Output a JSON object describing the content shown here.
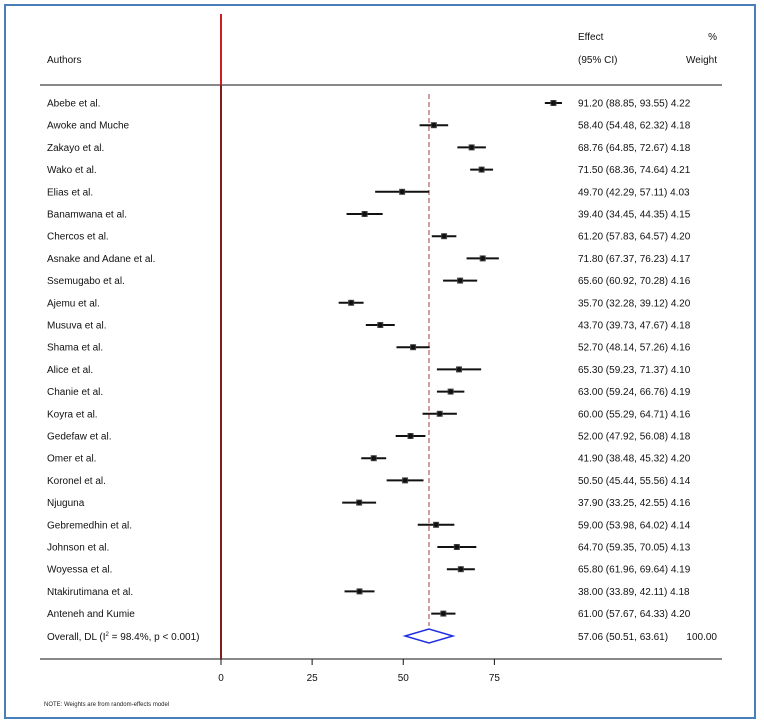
{
  "chart_data": {
    "type": "forest",
    "header": {
      "authors": "Authors",
      "effect": "Effect",
      "ci": "(95% CI)",
      "percent": "%",
      "weight": "Weight"
    },
    "xaxis": {
      "ticks": [
        0,
        25,
        50,
        75
      ],
      "xlim": [
        0,
        75
      ]
    },
    "null_line": 0,
    "pooled_line": 57.06,
    "studies": [
      {
        "label": "Abebe et al.",
        "est": 91.2,
        "lo": 88.85,
        "hi": 93.55,
        "text": "91.20 (88.85, 93.55) 4.22"
      },
      {
        "label": "Awoke and Muche",
        "est": 58.4,
        "lo": 54.48,
        "hi": 62.32,
        "text": "58.40 (54.48, 62.32) 4.18"
      },
      {
        "label": "Zakayo et al.",
        "est": 68.76,
        "lo": 64.85,
        "hi": 72.67,
        "text": "68.76 (64.85, 72.67) 4.18"
      },
      {
        "label": "Wako et al.",
        "est": 71.5,
        "lo": 68.36,
        "hi": 74.64,
        "text": "71.50 (68.36, 74.64) 4.21"
      },
      {
        "label": "Elias et al.",
        "est": 49.7,
        "lo": 42.29,
        "hi": 57.11,
        "text": "49.70 (42.29, 57.11) 4.03"
      },
      {
        "label": "Banamwana et al.",
        "est": 39.4,
        "lo": 34.45,
        "hi": 44.35,
        "text": "39.40 (34.45, 44.35) 4.15"
      },
      {
        "label": "Chercos et al.",
        "est": 61.2,
        "lo": 57.83,
        "hi": 64.57,
        "text": "61.20 (57.83, 64.57) 4.20"
      },
      {
        "label": "Asnake and Adane et al.",
        "est": 71.8,
        "lo": 67.37,
        "hi": 76.23,
        "text": "71.80 (67.37, 76.23) 4.17"
      },
      {
        "label": "Ssemugabo et al.",
        "est": 65.6,
        "lo": 60.92,
        "hi": 70.28,
        "text": "65.60 (60.92, 70.28) 4.16"
      },
      {
        "label": "Ajemu et al.",
        "est": 35.7,
        "lo": 32.28,
        "hi": 39.12,
        "text": "35.70 (32.28, 39.12) 4.20"
      },
      {
        "label": "Musuva et al.",
        "est": 43.7,
        "lo": 39.73,
        "hi": 47.67,
        "text": "43.70 (39.73, 47.67) 4.18"
      },
      {
        "label": "Shama et al.",
        "est": 52.7,
        "lo": 48.14,
        "hi": 57.26,
        "text": "52.70 (48.14, 57.26) 4.16"
      },
      {
        "label": "Alice  et al.",
        "est": 65.3,
        "lo": 59.23,
        "hi": 71.37,
        "text": "65.30 (59.23, 71.37) 4.10"
      },
      {
        "label": "Chanie et al.",
        "est": 63.0,
        "lo": 59.24,
        "hi": 66.76,
        "text": "63.00 (59.24, 66.76) 4.19"
      },
      {
        "label": "Koyra et al.",
        "est": 60.0,
        "lo": 55.29,
        "hi": 64.71,
        "text": "60.00 (55.29, 64.71) 4.16"
      },
      {
        "label": "Gedefaw et al.",
        "est": 52.0,
        "lo": 47.92,
        "hi": 56.08,
        "text": "52.00 (47.92, 56.08) 4.18"
      },
      {
        "label": "Omer et al.",
        "est": 41.9,
        "lo": 38.48,
        "hi": 45.32,
        "text": "41.90 (38.48, 45.32) 4.20"
      },
      {
        "label": "Koronel et al.",
        "est": 50.5,
        "lo": 45.44,
        "hi": 55.56,
        "text": "50.50 (45.44, 55.56) 4.14"
      },
      {
        "label": "Njuguna",
        "est": 37.9,
        "lo": 33.25,
        "hi": 42.55,
        "text": "37.90 (33.25, 42.55) 4.16"
      },
      {
        "label": "Gebremedhin et al.",
        "est": 59.0,
        "lo": 53.98,
        "hi": 64.02,
        "text": "59.00 (53.98, 64.02) 4.14"
      },
      {
        "label": "Johnson et al.",
        "est": 64.7,
        "lo": 59.35,
        "hi": 70.05,
        "text": "64.70 (59.35, 70.05) 4.13"
      },
      {
        "label": "Woyessa et al.",
        "est": 65.8,
        "lo": 61.96,
        "hi": 69.64,
        "text": "65.80 (61.96, 69.64) 4.19"
      },
      {
        "label": "Ntakirutimana et al.",
        "est": 38.0,
        "lo": 33.89,
        "hi": 42.11,
        "text": "38.00 (33.89, 42.11) 4.18"
      },
      {
        "label": "Anteneh and Kumie",
        "est": 61.0,
        "lo": 57.67,
        "hi": 64.33,
        "text": "61.00 (57.67, 64.33) 4.20"
      }
    ],
    "overall": {
      "label_main": "Overall, DL (I",
      "label_sup": "2",
      "label_rest": " = 98.4%, p < 0.001)",
      "est": 57.06,
      "lo": 50.51,
      "hi": 63.61,
      "text": "57.06 (50.51, 63.61)",
      "weight": "100.00"
    },
    "note": "NOTE: Weights are from random-effects model",
    "colors": {
      "null_line": "#d11f1f",
      "null_line_lower": "#7a1f1f",
      "pooled_line": "#b03a3a",
      "diamond": "#1f2fe0",
      "marker": "#111111",
      "frame": "#4a7ebb"
    }
  }
}
